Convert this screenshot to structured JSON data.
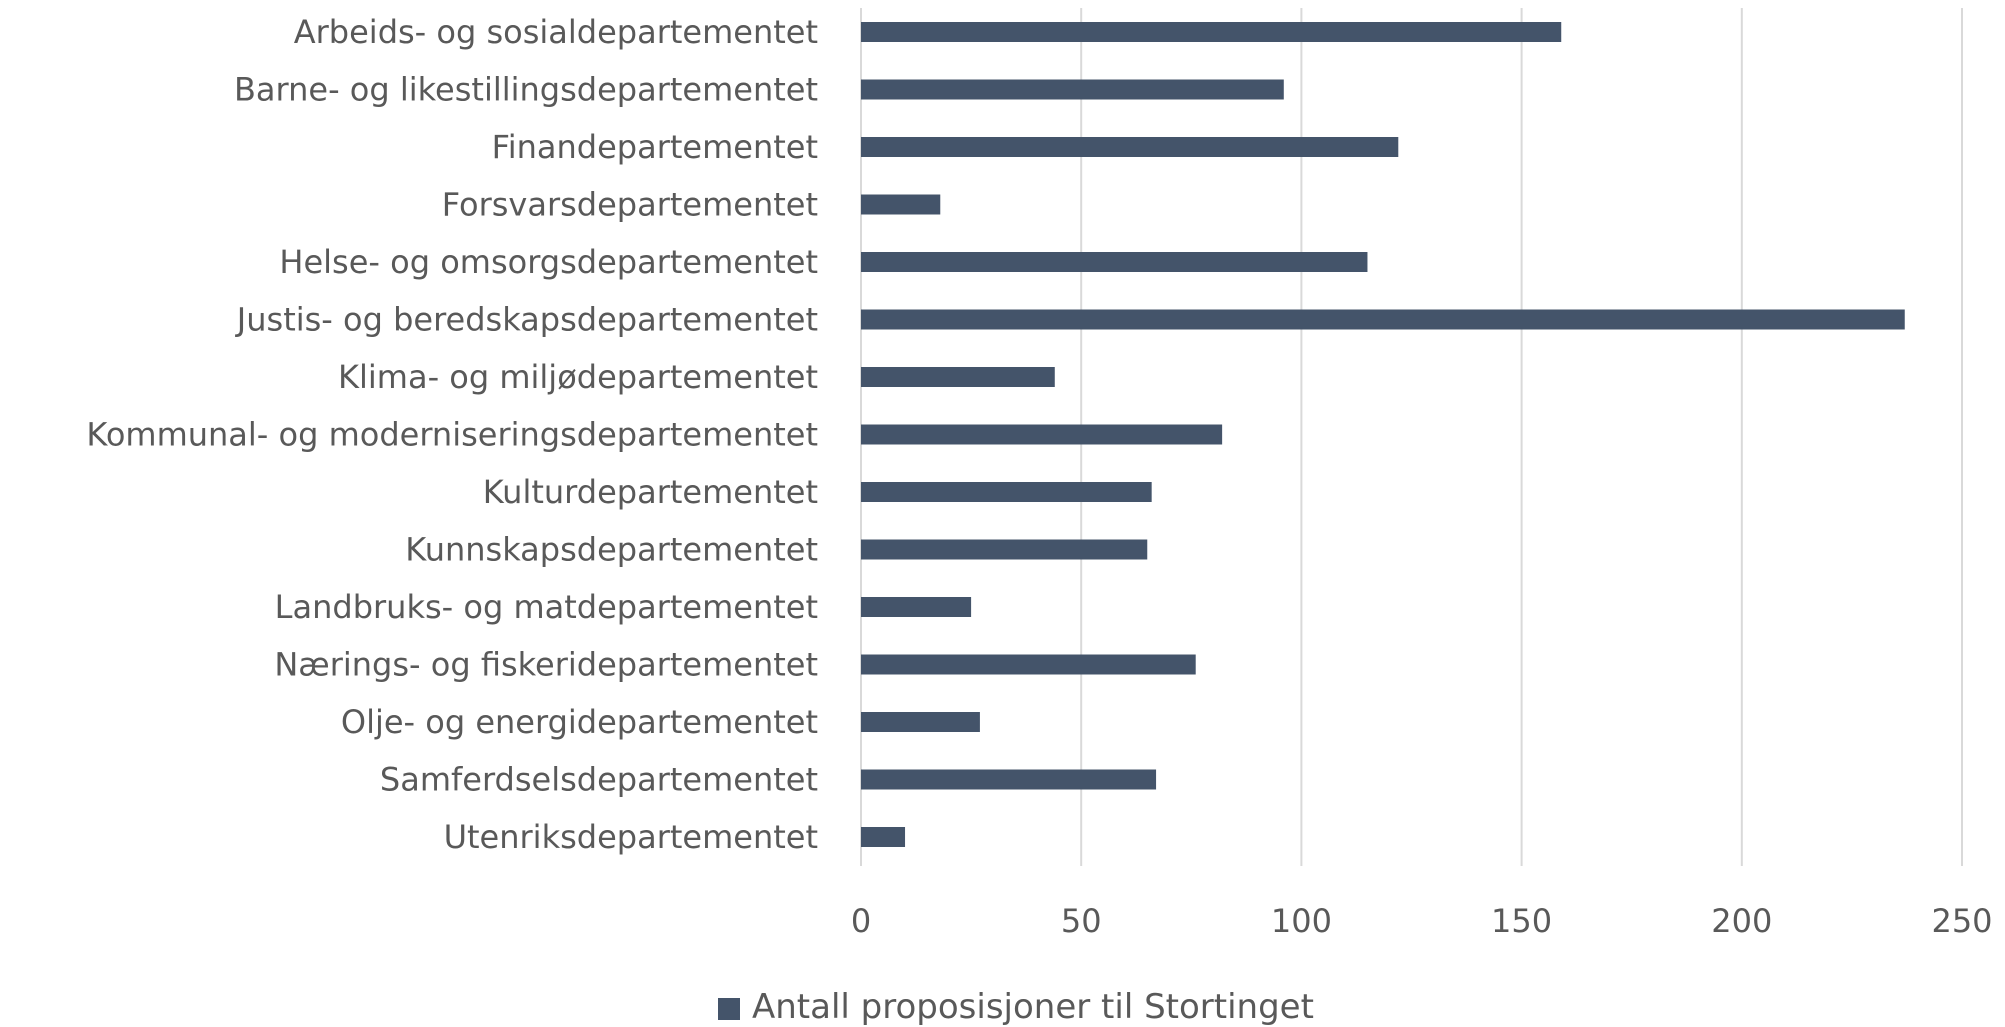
{
  "chart_data": {
    "type": "bar",
    "orientation": "horizontal",
    "categories": [
      "Arbeids- og sosialdepartementet",
      "Barne- og likestillingsdepartementet",
      "Finandepartementet",
      "Forsvarsdepartementet",
      "Helse- og omsorgsdepartementet",
      "Justis- og beredskapsdepartementet",
      "Klima- og miljødepartementet",
      "Kommunal- og moderniseringsdepartementet",
      "Kulturdepartementet",
      "Kunnskapsdepartementet",
      "Landbruks- og matdepartementet",
      "Nærings- og fiskeridepartementet",
      "Olje- og energidepartementet",
      "Samferdselsdepartementet",
      "Utenriksdepartementet"
    ],
    "series": [
      {
        "name": "Antall proposisjoner til Stortinget",
        "values": [
          159,
          96,
          122,
          18,
          115,
          237,
          44,
          82,
          66,
          65,
          25,
          76,
          27,
          67,
          10
        ]
      }
    ],
    "xlim": [
      0,
      250
    ],
    "x_ticks": [
      0,
      50,
      100,
      150,
      200,
      250
    ],
    "grid": true,
    "legend": "bottom",
    "colors": {
      "bar": "#44546a",
      "grid": "#d9d9d9",
      "text": "#595959"
    }
  }
}
